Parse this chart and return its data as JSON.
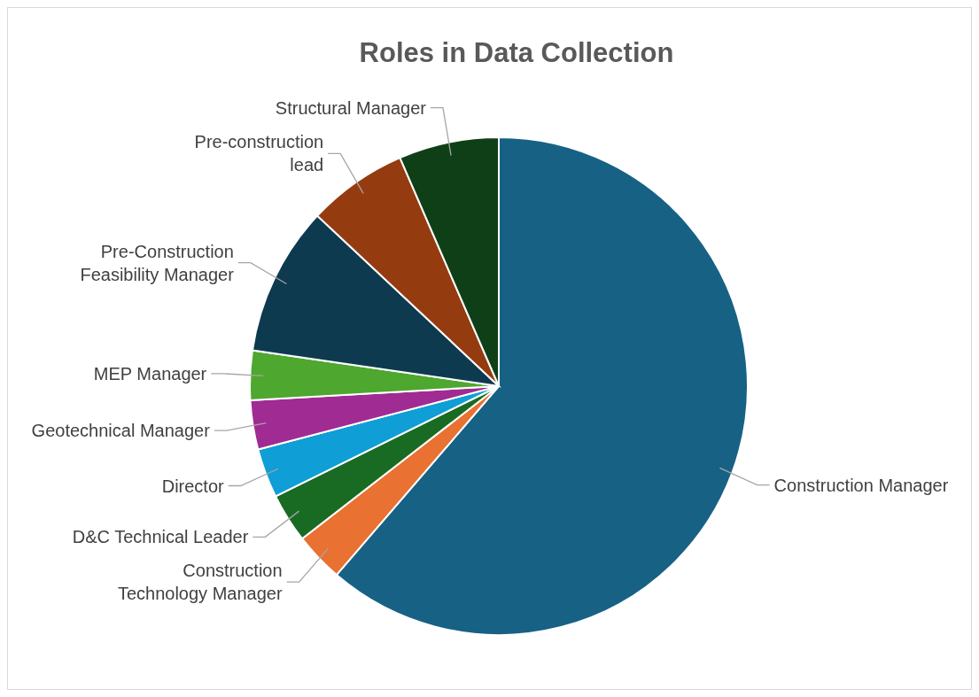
{
  "chart_data": {
    "type": "pie",
    "title": "Roles in Data Collection",
    "categories": [
      "Construction Manager",
      "Construction Technology Manager",
      "D&C Technical Leader",
      "Director",
      "Geotechnical Manager",
      "MEP Manager",
      "Pre-Construction Feasibility Manager",
      "Pre-construction lead",
      "Structural Manager"
    ],
    "values": [
      61.3,
      3.2,
      3.2,
      3.2,
      3.2,
      3.2,
      9.7,
      6.5,
      6.5
    ],
    "colors": [
      "#176185",
      "#e97132",
      "#196b24",
      "#0f9ed5",
      "#a02b93",
      "#4ea72e",
      "#0e3a50",
      "#953b10",
      "#0f3f17"
    ]
  }
}
